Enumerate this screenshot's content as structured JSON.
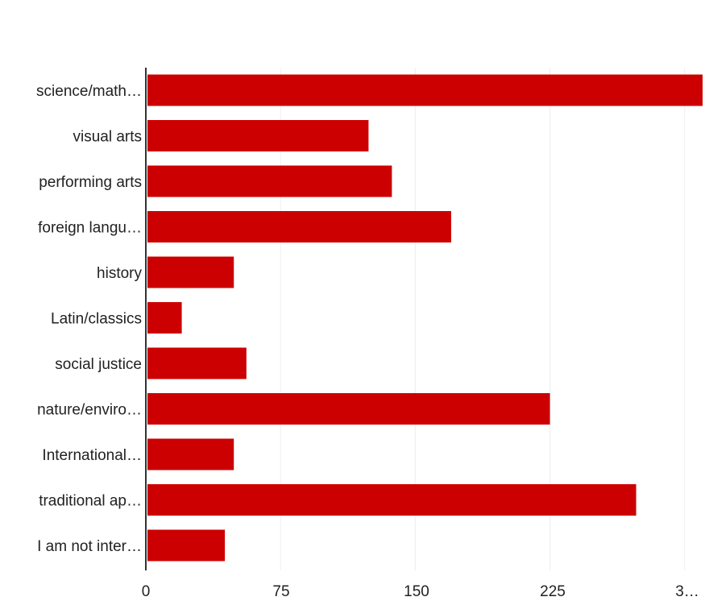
{
  "chart_data": {
    "type": "bar",
    "orientation": "horizontal",
    "categories": [
      "science/math…",
      "visual arts",
      "performing arts",
      "foreign langu…",
      "history",
      "Latin/classics",
      "social justice",
      "nature/enviro…",
      "International…",
      "traditional ap…",
      "I am not inter…"
    ],
    "values": [
      310,
      124,
      137,
      170,
      49,
      20,
      56,
      225,
      49,
      273,
      44
    ],
    "x_ticks": [
      "0",
      "75",
      "150",
      "225",
      "3…"
    ],
    "xlim": [
      0,
      310
    ],
    "grid": true,
    "legend": "none",
    "bar_color": "#cc0000"
  }
}
